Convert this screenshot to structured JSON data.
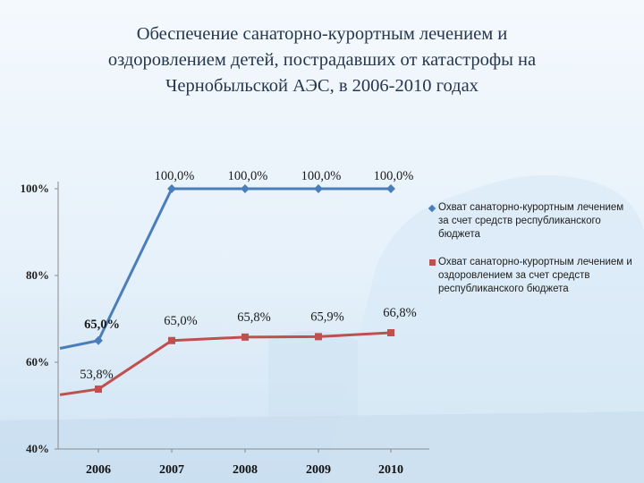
{
  "title_lines": [
    "Обеспечение санаторно-курортным лечением и",
    "оздоровлением детей, пострадавших от катастрофы на",
    "Чернобыльской АЭС, в 2006-2010 годах"
  ],
  "colors": {
    "series1": "#4a7ebb",
    "series2": "#c0504d",
    "title": "#26364c"
  },
  "chart_data": {
    "type": "line",
    "categories": [
      "2006",
      "2007",
      "2008",
      "2009",
      "2010"
    ],
    "ylim": [
      40,
      100
    ],
    "yticks": [
      40,
      60,
      80,
      100
    ],
    "ytick_labels": [
      "40%",
      "60%",
      "80%",
      "100%"
    ],
    "series": [
      {
        "name": "Охват санаторно-курортным лечением за счет средств республиканского бюджета",
        "values": [
          65.0,
          100.0,
          100.0,
          100.0,
          100.0
        ],
        "labels": [
          "65,0%",
          "100,0%",
          "100,0%",
          "100,0%",
          "100,0%"
        ],
        "marker": "diamond"
      },
      {
        "name": "Охват санаторно-курортным лечением и оздоровлением за счет средств республиканского бюджета",
        "values": [
          53.8,
          65.0,
          65.8,
          65.9,
          66.8
        ],
        "labels": [
          "53,8%",
          "65,0%",
          "65,8%",
          "65,9%",
          "66,8%"
        ],
        "marker": "square"
      }
    ],
    "legend_position": "right"
  }
}
